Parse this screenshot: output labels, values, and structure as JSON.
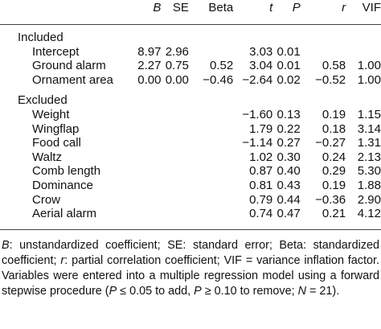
{
  "table": {
    "columns": [
      {
        "text": "B",
        "italic": true
      },
      {
        "text": "SE",
        "italic": false
      },
      {
        "text": "Beta",
        "italic": false
      },
      {
        "text": "t",
        "italic": true
      },
      {
        "text": "P",
        "italic": true
      },
      {
        "text": "r",
        "italic": true
      },
      {
        "text": "VIF",
        "italic": false
      }
    ],
    "groups": [
      {
        "label": "Included",
        "rows": [
          {
            "label": "Intercept",
            "cells": [
              "8.97",
              "2.96",
              null,
              "3.03",
              "0.01",
              null,
              null
            ]
          },
          {
            "label": "Ground alarm",
            "cells": [
              "2.27",
              "0.75",
              "0.52",
              "3.04",
              "0.01",
              "0.58",
              "1.00"
            ]
          },
          {
            "label": "Ornament area",
            "cells": [
              "0.00",
              "0.00",
              "−0.46",
              "−2.64",
              "0.02",
              "−0.52",
              "1.00"
            ]
          }
        ]
      },
      {
        "label": "Excluded",
        "rows": [
          {
            "label": "Weight",
            "cells": [
              null,
              null,
              null,
              "−1.60",
              "0.13",
              "0.19",
              "1.15"
            ]
          },
          {
            "label": "Wingflap",
            "cells": [
              null,
              null,
              null,
              "1.79",
              "0.22",
              "0.18",
              "3.14"
            ]
          },
          {
            "label": "Food call",
            "cells": [
              null,
              null,
              null,
              "−1.14",
              "0.27",
              "−0.27",
              "1.31"
            ]
          },
          {
            "label": "Waltz",
            "cells": [
              null,
              null,
              null,
              "1.02",
              "0.30",
              "0.24",
              "2.13"
            ]
          },
          {
            "label": "Comb length",
            "cells": [
              null,
              null,
              null,
              "0.87",
              "0.40",
              "0.29",
              "5.30"
            ]
          },
          {
            "label": "Dominance",
            "cells": [
              null,
              null,
              null,
              "0.81",
              "0.43",
              "0.19",
              "1.88"
            ]
          },
          {
            "label": "Crow",
            "cells": [
              null,
              null,
              null,
              "0.79",
              "0.44",
              "−0.36",
              "2.90"
            ]
          },
          {
            "label": "Aerial alarm",
            "cells": [
              null,
              null,
              null,
              "0.74",
              "0.47",
              "0.21",
              "4.12"
            ]
          }
        ]
      }
    ]
  },
  "footnote": [
    "B",
    ": unstandardized coefficient; SE: standard error; Beta: standardized coefficient; ",
    "r",
    ": partial correlation coefficient; VIF = variance inflation factor. Variables were entered into a multiple regression model using a forward stepwise procedure (",
    "P",
    " ≤ 0.05 to add, ",
    "P",
    " ≥ 0.10 to remove; ",
    "N",
    " = 21)."
  ]
}
